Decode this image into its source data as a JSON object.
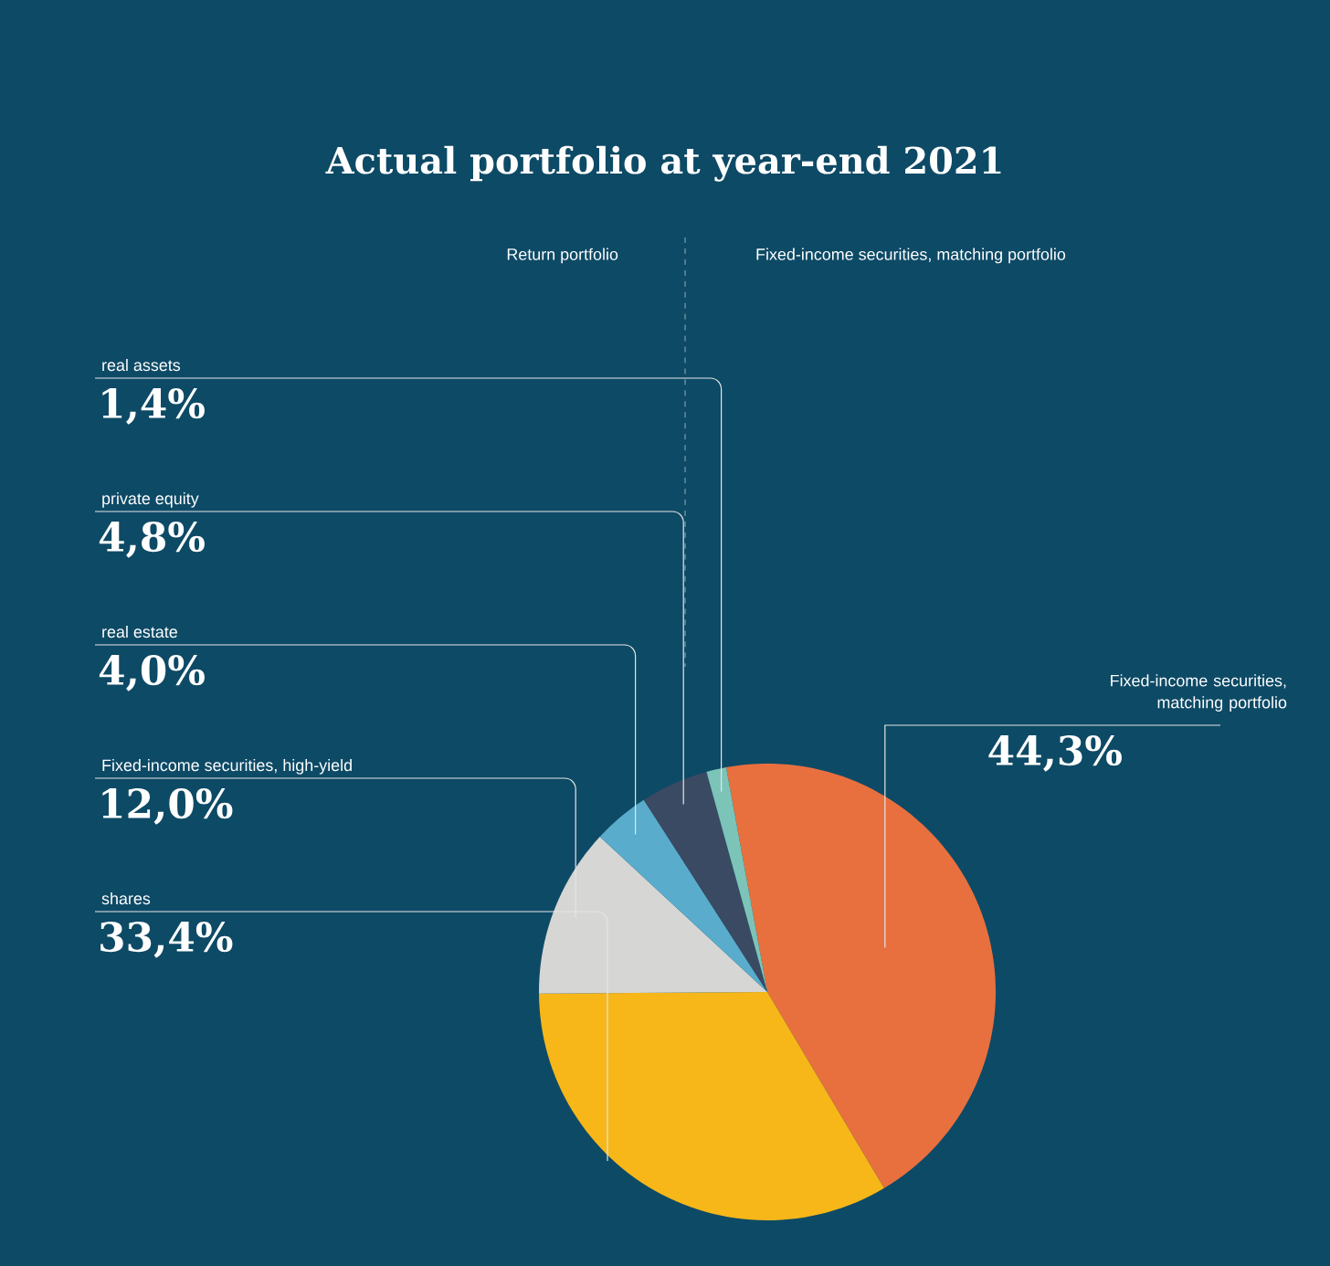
{
  "chart_data": {
    "type": "pie",
    "title": "Actual portfolio at year-end 2021",
    "annotations": [
      "Return portfolio",
      "Fixed-income securities, matching portfolio"
    ],
    "categories": [
      "Fixed-income securities, matching portfolio",
      "shares",
      "Fixed-income securities, high-yield",
      "real estate",
      "private equity",
      "real assets"
    ],
    "values": [
      44.3,
      33.4,
      12.0,
      4.0,
      4.8,
      1.4
    ],
    "value_labels": [
      "44,3%",
      "33,4%",
      "12,0%",
      "4,0%",
      "4,8%",
      "1,4%"
    ],
    "colors": [
      "#e8703e",
      "#f7b718",
      "#d6d6d4",
      "#5aaccc",
      "#3b4a63",
      "#7cc4b8"
    ]
  }
}
